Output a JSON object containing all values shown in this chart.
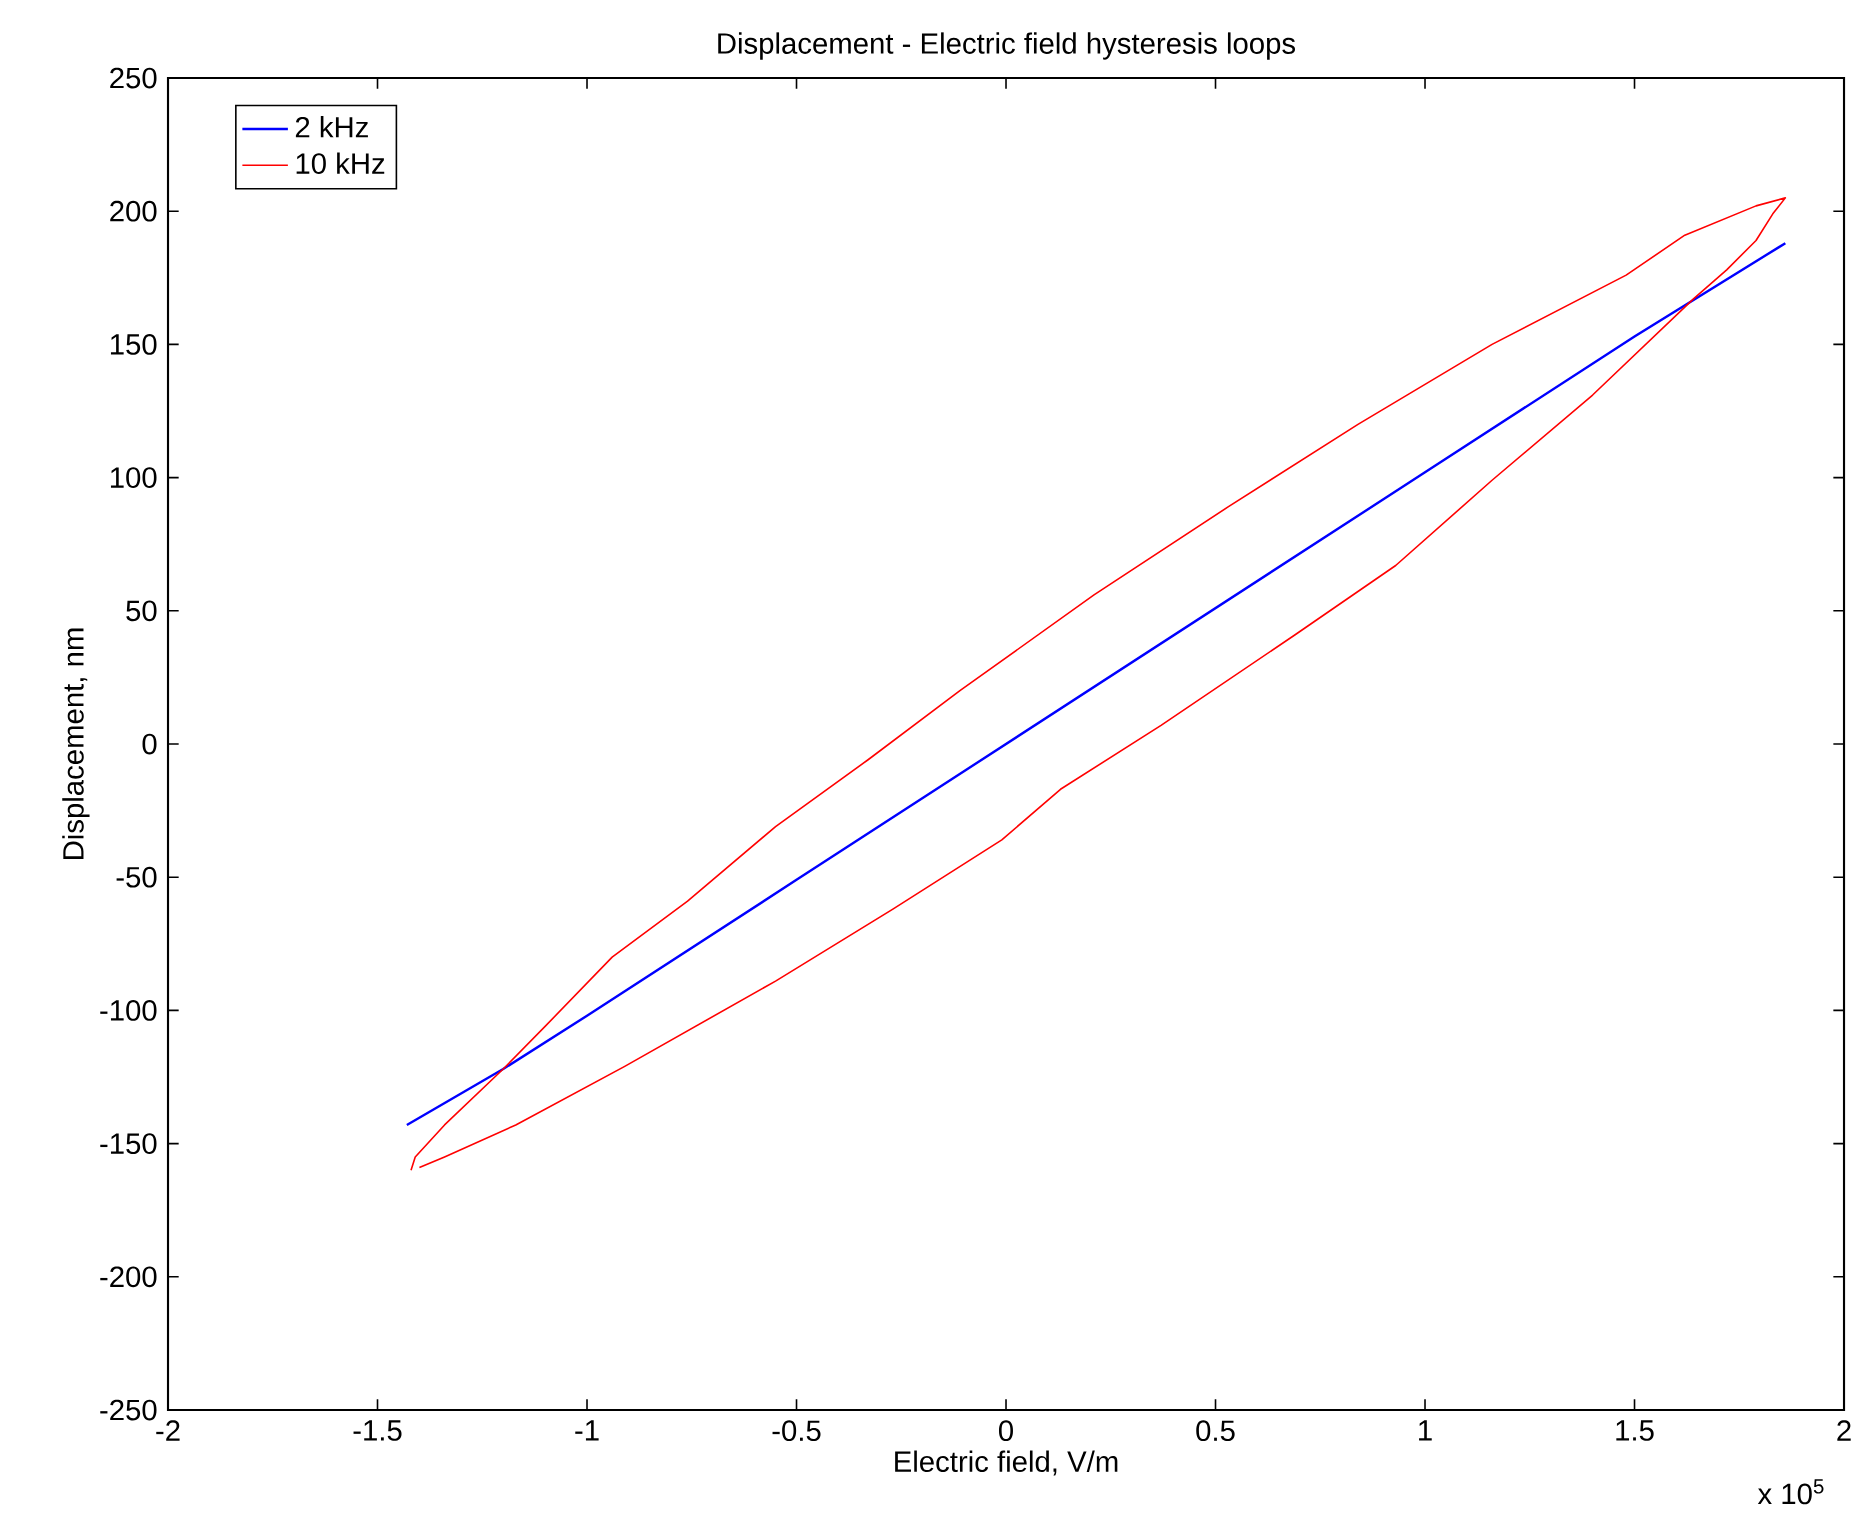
{
  "chart_data": {
    "type": "line",
    "title": "Displacement - Electric field hysteresis loops",
    "xlabel": "Electric field, V/m",
    "ylabel": "Displacement, nm",
    "annotations": [
      "x 10$^{5}$"
    ],
    "xlim": [
      -2,
      2
    ],
    "ylim": [
      -250,
      250
    ],
    "xticks": [
      -2,
      -1.5,
      -1,
      -0.5,
      0,
      0.5,
      1,
      1.5,
      2
    ],
    "yticks": [
      -250,
      -200,
      -150,
      -100,
      -50,
      0,
      50,
      100,
      150,
      200,
      250
    ],
    "legend": "top left",
    "series": [
      {
        "name": "2 kHz",
        "color": "#0000ff",
        "x": [
          -1.43,
          -1.2,
          -1,
          -0.5,
          0,
          0.5,
          1,
          1.5,
          1.86
        ],
        "values": [
          -143,
          -122,
          -102,
          -51,
          0,
          51,
          102,
          153,
          188
        ]
      },
      {
        "name": "10 kHz",
        "color": "#ff0000",
        "x": [
          -1.42,
          -1.41,
          -1.34,
          -1.2,
          -1.1,
          -0.94,
          -0.76,
          -0.55,
          -0.33,
          -0.11,
          0.21,
          0.53,
          0.84,
          1.16,
          1.48,
          1.62,
          1.79,
          1.86,
          1.83,
          1.79,
          1.72,
          1.64,
          1.4,
          1.16,
          0.93,
          0.69,
          0.37,
          0.13,
          -0.01,
          -0.27,
          -0.55,
          -0.91,
          -1.17,
          -1.34,
          -1.4
        ],
        "values": [
          -160,
          -155,
          -143,
          -122,
          -106,
          -80,
          -59,
          -31,
          -6,
          20,
          56,
          89,
          120,
          150,
          176,
          191,
          202,
          205,
          199,
          189,
          178,
          167,
          131,
          99,
          67,
          41,
          7,
          -17,
          -36,
          -62,
          -89,
          -121,
          -143,
          -155,
          -159
        ]
      }
    ]
  }
}
